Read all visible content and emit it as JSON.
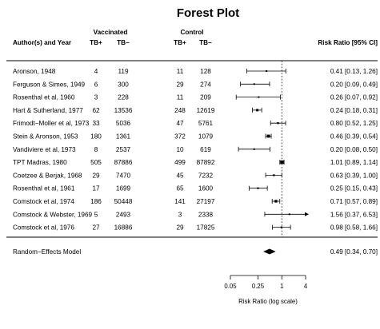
{
  "chart_data": {
    "type": "forest",
    "title": "Forest Plot",
    "xlabel": "Risk Ratio (log scale)",
    "x_scale": "log",
    "x_ticks": [
      0.05,
      0.25,
      1,
      4
    ],
    "x_tick_labels": [
      "0.05",
      "0.25",
      "1",
      "4"
    ],
    "reference_line": 1,
    "headers": {
      "author": "Author(s) and Year",
      "vaccinated": "Vaccinated",
      "control": "Control",
      "tbpos": "TB+",
      "tbneg": "TB−",
      "ci": "Risk Ratio [95% CI]"
    },
    "studies": [
      {
        "author": "Aronson, 1948",
        "v_pos": "4",
        "v_neg": "119",
        "c_pos": "11",
        "c_neg": "128",
        "rr": 0.41,
        "lo": 0.13,
        "hi": 1.26,
        "ci_text": "0.41 [0.13, 1.26]"
      },
      {
        "author": "Ferguson & Simes, 1949",
        "v_pos": "6",
        "v_neg": "300",
        "c_pos": "29",
        "c_neg": "274",
        "rr": 0.2,
        "lo": 0.09,
        "hi": 0.49,
        "ci_text": "0.20 [0.09, 0.49]"
      },
      {
        "author": "Rosenthal et al, 1960",
        "v_pos": "3",
        "v_neg": "228",
        "c_pos": "11",
        "c_neg": "209",
        "rr": 0.26,
        "lo": 0.07,
        "hi": 0.92,
        "ci_text": "0.26 [0.07, 0.92]"
      },
      {
        "author": "Hart & Sutherland, 1977",
        "v_pos": "62",
        "v_neg": "13536",
        "c_pos": "248",
        "c_neg": "12619",
        "rr": 0.24,
        "lo": 0.18,
        "hi": 0.31,
        "ci_text": "0.24 [0.18, 0.31]"
      },
      {
        "author": "Frimodt−Moller et al, 1973",
        "v_pos": "33",
        "v_neg": "5036",
        "c_pos": "47",
        "c_neg": "5761",
        "rr": 0.8,
        "lo": 0.52,
        "hi": 1.25,
        "ci_text": "0.80 [0.52, 1.25]"
      },
      {
        "author": "Stein & Aronson, 1953",
        "v_pos": "180",
        "v_neg": "1361",
        "c_pos": "372",
        "c_neg": "1079",
        "rr": 0.46,
        "lo": 0.39,
        "hi": 0.54,
        "ci_text": "0.46 [0.39, 0.54]"
      },
      {
        "author": "Vandiviere et al, 1973",
        "v_pos": "8",
        "v_neg": "2537",
        "c_pos": "10",
        "c_neg": "619",
        "rr": 0.2,
        "lo": 0.08,
        "hi": 0.5,
        "ci_text": "0.20 [0.08, 0.50]"
      },
      {
        "author": "TPT Madras, 1980",
        "v_pos": "505",
        "v_neg": "87886",
        "c_pos": "499",
        "c_neg": "87892",
        "rr": 1.01,
        "lo": 0.89,
        "hi": 1.14,
        "ci_text": "1.01 [0.89, 1.14]"
      },
      {
        "author": "Coetzee & Berjak, 1968",
        "v_pos": "29",
        "v_neg": "7470",
        "c_pos": "45",
        "c_neg": "7232",
        "rr": 0.63,
        "lo": 0.39,
        "hi": 1.0,
        "ci_text": "0.63 [0.39, 1.00]"
      },
      {
        "author": "Rosenthal et al, 1961",
        "v_pos": "17",
        "v_neg": "1699",
        "c_pos": "65",
        "c_neg": "1600",
        "rr": 0.25,
        "lo": 0.15,
        "hi": 0.43,
        "ci_text": "0.25 [0.15, 0.43]"
      },
      {
        "author": "Comstock et al, 1974",
        "v_pos": "186",
        "v_neg": "50448",
        "c_pos": "141",
        "c_neg": "27197",
        "rr": 0.71,
        "lo": 0.57,
        "hi": 0.89,
        "ci_text": "0.71 [0.57, 0.89]"
      },
      {
        "author": "Comstock & Webster, 1969",
        "v_pos": "5",
        "v_neg": "2493",
        "c_pos": "3",
        "c_neg": "2338",
        "rr": 1.56,
        "lo": 0.37,
        "hi": 6.53,
        "ci_text": "1.56 [0.37, 6.53]"
      },
      {
        "author": "Comstock et al, 1976",
        "v_pos": "27",
        "v_neg": "16886",
        "c_pos": "29",
        "c_neg": "17825",
        "rr": 0.98,
        "lo": 0.58,
        "hi": 1.66,
        "ci_text": "0.98 [0.58, 1.66]"
      }
    ],
    "summary": {
      "label": "Random−Effects Model",
      "rr": 0.49,
      "lo": 0.34,
      "hi": 0.7,
      "ci_text": "0.49 [0.34, 0.70]"
    }
  }
}
